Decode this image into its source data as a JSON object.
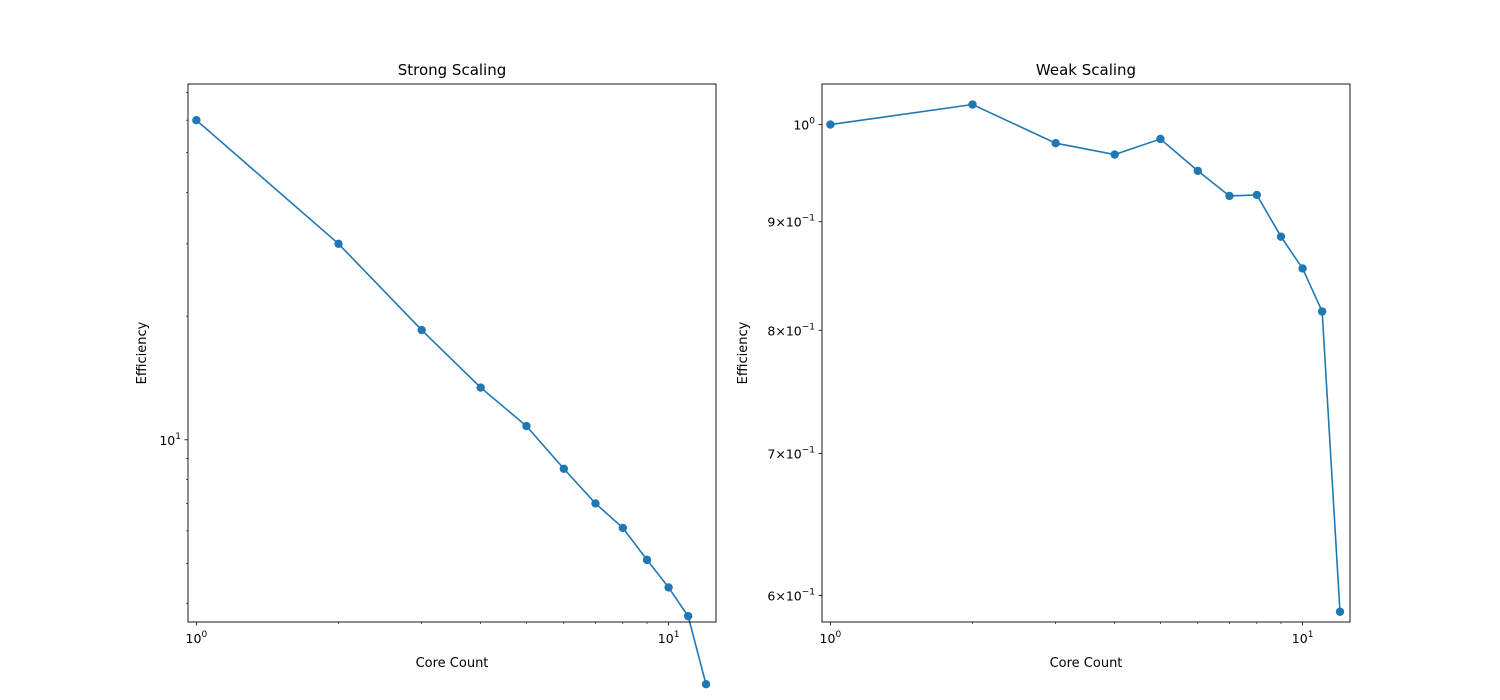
{
  "chart_data": [
    {
      "type": "line",
      "title": "Strong Scaling",
      "xlabel": "Core Count",
      "ylabel": "Efficiency",
      "xscale": "log",
      "yscale": "log",
      "grid": false,
      "legend": "none",
      "color": "#1f77b4",
      "marker": "circle",
      "xlim": [
        0.96,
        12.6
      ],
      "ylim": [
        3.6,
        73.5
      ],
      "x": [
        1,
        2,
        3,
        4,
        5,
        6,
        7,
        8,
        9,
        10,
        11,
        12
      ],
      "y": [
        60,
        30,
        18.5,
        13.4,
        10.8,
        8.5,
        7.0,
        6.1,
        5.1,
        4.37,
        3.72,
        2.54
      ],
      "x_ticks": [
        {
          "value": 1,
          "base": "10",
          "exp": "0"
        },
        {
          "value": 10,
          "base": "10",
          "exp": "1"
        }
      ],
      "y_ticks": [
        {
          "value": 10,
          "base": "10",
          "exp": "1"
        }
      ]
    },
    {
      "type": "line",
      "title": "Weak Scaling",
      "xlabel": "Core Count",
      "ylabel": "Efficiency",
      "xscale": "log",
      "yscale": "log",
      "grid": false,
      "legend": "none",
      "color": "#1f77b4",
      "marker": "circle",
      "xlim": [
        0.96,
        12.6
      ],
      "ylim": [
        0.583,
        1.045
      ],
      "x": [
        1,
        2,
        3,
        4,
        5,
        6,
        7,
        8,
        9,
        10,
        11,
        12
      ],
      "y": [
        1.0,
        1.022,
        0.98,
        0.968,
        0.9845,
        0.951,
        0.9255,
        0.9265,
        0.8855,
        0.8555,
        0.8165,
        0.5895
      ],
      "x_ticks": [
        {
          "value": 1,
          "base": "10",
          "exp": "0"
        },
        {
          "value": 10,
          "base": "10",
          "exp": "1"
        }
      ],
      "y_ticks": [
        {
          "value": 1,
          "base": "10",
          "exp": "0"
        },
        {
          "value": 0.9,
          "mult": "9",
          "base": "10",
          "exp": "−1"
        },
        {
          "value": 0.8,
          "mult": "8",
          "base": "10",
          "exp": "−1"
        },
        {
          "value": 0.7,
          "mult": "7",
          "base": "10",
          "exp": "−1"
        },
        {
          "value": 0.6,
          "mult": "6",
          "base": "10",
          "exp": "−1"
        }
      ]
    }
  ]
}
